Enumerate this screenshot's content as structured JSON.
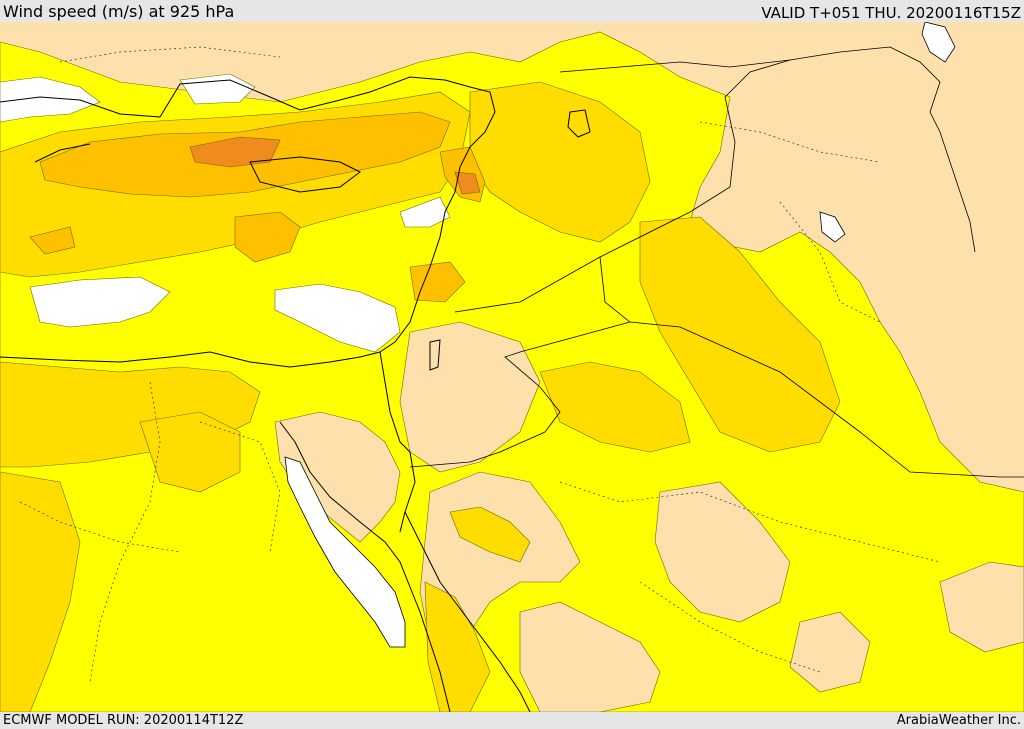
{
  "header": {
    "title": "Wind speed (m/s) at 925 hPa",
    "valid": "VALID T+051 THU. 20200116T15Z"
  },
  "footer": {
    "model_run": "ECMWF MODEL RUN: 20200114T12Z",
    "credit": "ArabiaWeather Inc."
  },
  "legend_colors": {
    "land_calm": "#fde0ac",
    "light": "#ffff00",
    "moderate": "#ffdd00",
    "fresh": "#ffc000",
    "strong": "#ffa500",
    "very_strong": "#f08c1e",
    "water_calm": "#ffffff"
  }
}
